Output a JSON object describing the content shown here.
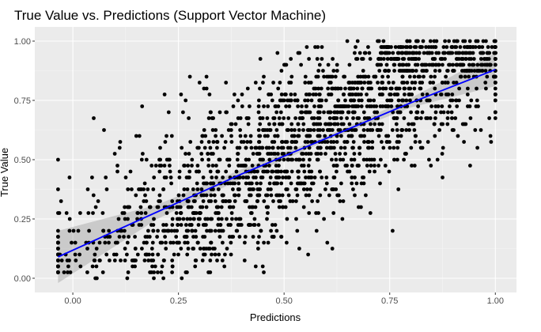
{
  "chart_data": {
    "type": "scatter",
    "title": "True Value vs. Predictions (Support Vector Machine)",
    "xlabel": "Predictions",
    "ylabel": "True Value",
    "xlim": [
      -0.09,
      1.05
    ],
    "ylim": [
      -0.06,
      1.06
    ],
    "x_ticks": [
      "0.00",
      "0.25",
      "0.50",
      "0.75",
      "1.00"
    ],
    "y_ticks": [
      "0.00",
      "0.25",
      "0.50",
      "0.75",
      "1.00"
    ],
    "grid": true,
    "points": {
      "color": "#000000",
      "approx_count": 2000,
      "x_range": [
        -0.035,
        1.0
      ],
      "y_range": [
        0.0,
        1.0
      ],
      "note_values_discrete_y": true
    },
    "regression": {
      "method": "linear",
      "color": "#0000ff",
      "band_color": "#999999",
      "x": [
        -0.035,
        0.2,
        0.4,
        0.6,
        0.8,
        1.0
      ],
      "y": [
        0.09,
        0.28,
        0.44,
        0.59,
        0.74,
        0.88
      ],
      "ci_lower": [
        -0.02,
        0.25,
        0.42,
        0.58,
        0.72,
        0.81
      ],
      "ci_upper": [
        0.2,
        0.31,
        0.46,
        0.6,
        0.76,
        0.95
      ]
    }
  }
}
